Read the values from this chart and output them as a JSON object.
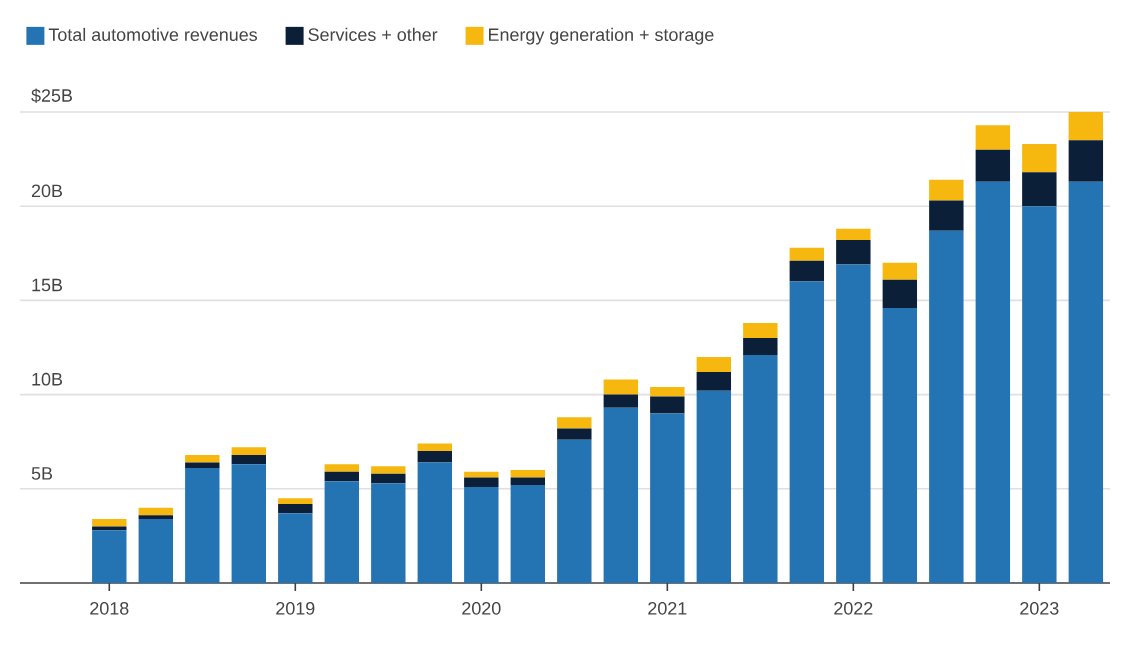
{
  "chart_data": {
    "type": "bar",
    "stacked": true,
    "x": [
      2018,
      2018.25,
      2018.5,
      2018.75,
      2019,
      2019.25,
      2019.5,
      2019.75,
      2020,
      2020.25,
      2020.5,
      2020.75,
      2021,
      2021.25,
      2021.5,
      2021.75,
      2022,
      2022.25,
      2022.5,
      2022.75,
      2023,
      2023.25
    ],
    "series": [
      {
        "name": "Total automotive revenues",
        "color": "#2474b3",
        "values": [
          2.8,
          3.4,
          6.1,
          6.3,
          3.7,
          5.4,
          5.3,
          6.4,
          5.1,
          5.2,
          7.6,
          9.3,
          9.0,
          10.2,
          12.1,
          16.0,
          16.9,
          14.6,
          18.7,
          21.3,
          20.0,
          21.3
        ]
      },
      {
        "name": "Services + other",
        "color": "#0b1f38",
        "values": [
          0.2,
          0.2,
          0.3,
          0.5,
          0.5,
          0.5,
          0.5,
          0.6,
          0.5,
          0.4,
          0.6,
          0.7,
          0.9,
          1.0,
          0.9,
          1.1,
          1.3,
          1.5,
          1.6,
          1.7,
          1.8,
          2.2
        ]
      },
      {
        "name": "Energy generation + storage",
        "color": "#f6b80f",
        "values": [
          0.4,
          0.4,
          0.4,
          0.4,
          0.3,
          0.4,
          0.4,
          0.4,
          0.3,
          0.4,
          0.6,
          0.8,
          0.5,
          0.8,
          0.8,
          0.7,
          0.6,
          0.9,
          1.1,
          1.3,
          1.5,
          1.5
        ]
      }
    ],
    "xlim": [
      2017.52,
      2023.38
    ],
    "xticks": [
      2018,
      2019,
      2020,
      2021,
      2022,
      2023
    ],
    "ylim": [
      0,
      25
    ],
    "yticks": [
      {
        "value": 5,
        "label": "5B"
      },
      {
        "value": 10,
        "label": "10B"
      },
      {
        "value": 15,
        "label": "15B"
      },
      {
        "value": 20,
        "label": "20B"
      },
      {
        "value": 25,
        "label": "$25B"
      }
    ],
    "grid": "y",
    "legend": "top left"
  }
}
